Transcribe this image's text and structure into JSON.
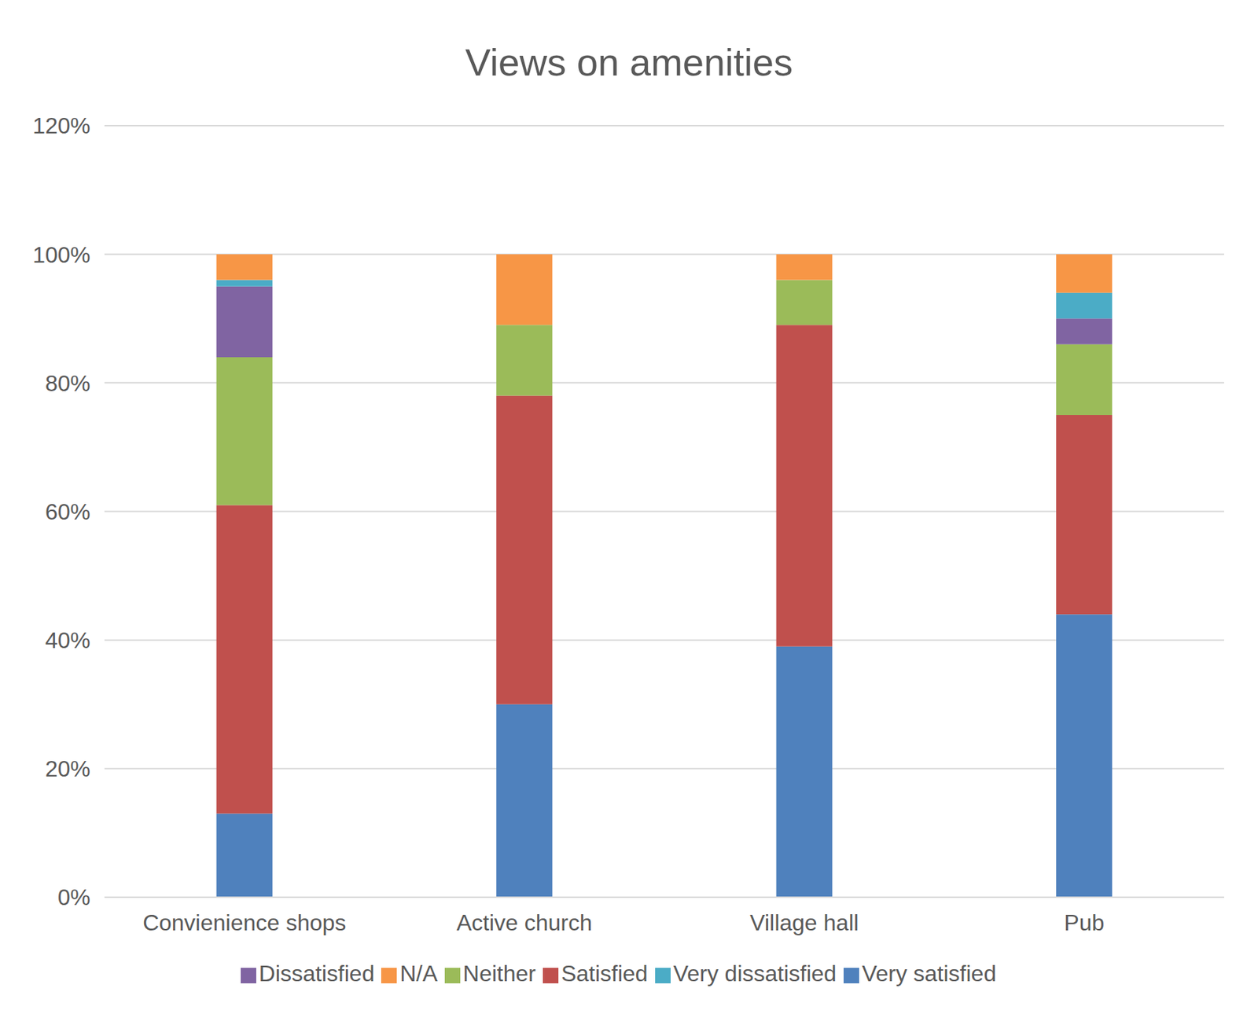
{
  "chart_data": {
    "type": "bar",
    "title": "Views on amenities",
    "stacked": true,
    "grid": true,
    "legend": "bottom",
    "categories": [
      "Convienience shops",
      "Active church",
      "Village hall",
      "Pub"
    ],
    "series": [
      {
        "name": "Very satisfied",
        "color": "#4f81bd",
        "values": [
          13,
          30,
          39,
          44
        ]
      },
      {
        "name": "Satisfied",
        "color": "#c0504d",
        "values": [
          48,
          48,
          50,
          31
        ]
      },
      {
        "name": "Neither",
        "color": "#9bbb59",
        "values": [
          23,
          11,
          7,
          11
        ]
      },
      {
        "name": "Dissatisfied",
        "color": "#8064a2",
        "values": [
          11,
          0,
          0,
          4
        ]
      },
      {
        "name": "Very dissatisfied",
        "color": "#4bacc6",
        "values": [
          1,
          0,
          0,
          4
        ]
      },
      {
        "name": "N/A",
        "color": "#f79646",
        "values": [
          4,
          11,
          4,
          6
        ]
      }
    ],
    "ylim": [
      0,
      120
    ],
    "yticks": [
      {
        "value": 0,
        "label": "0%"
      },
      {
        "value": 20,
        "label": "20%"
      },
      {
        "value": 40,
        "label": "40%"
      },
      {
        "value": 60,
        "label": "60%"
      },
      {
        "value": 80,
        "label": "80%"
      },
      {
        "value": 100,
        "label": "100%"
      },
      {
        "value": 120,
        "label": "120%"
      }
    ]
  }
}
